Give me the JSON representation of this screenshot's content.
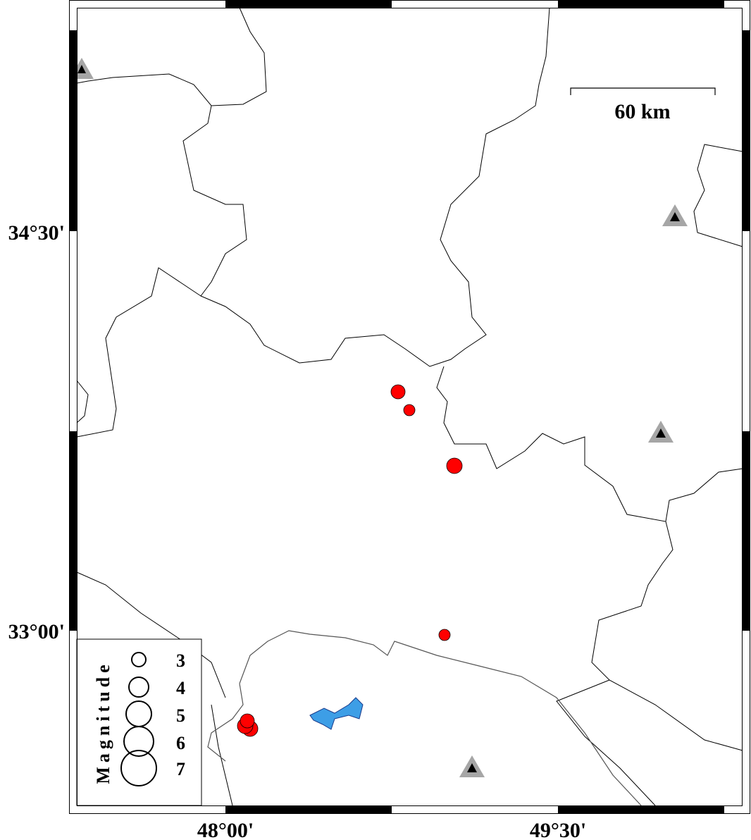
{
  "map": {
    "axis_labels": {
      "lat": [
        "34°30'",
        "33°00'"
      ],
      "lon": [
        "48°00'",
        "49°30'"
      ]
    },
    "scale_bar": {
      "label": "60 km"
    },
    "legend": {
      "title": "Magnitude",
      "entries": [
        "3",
        "4",
        "5",
        "6",
        "7"
      ]
    },
    "colors": {
      "earthquake": "#ff0000",
      "station_outer": "#a6a6a6",
      "station_inner": "#000000",
      "lake": "#3d9ee6"
    },
    "symbols": {
      "earthquake": "circle-sized-by-magnitude",
      "station": "triangle"
    }
  }
}
